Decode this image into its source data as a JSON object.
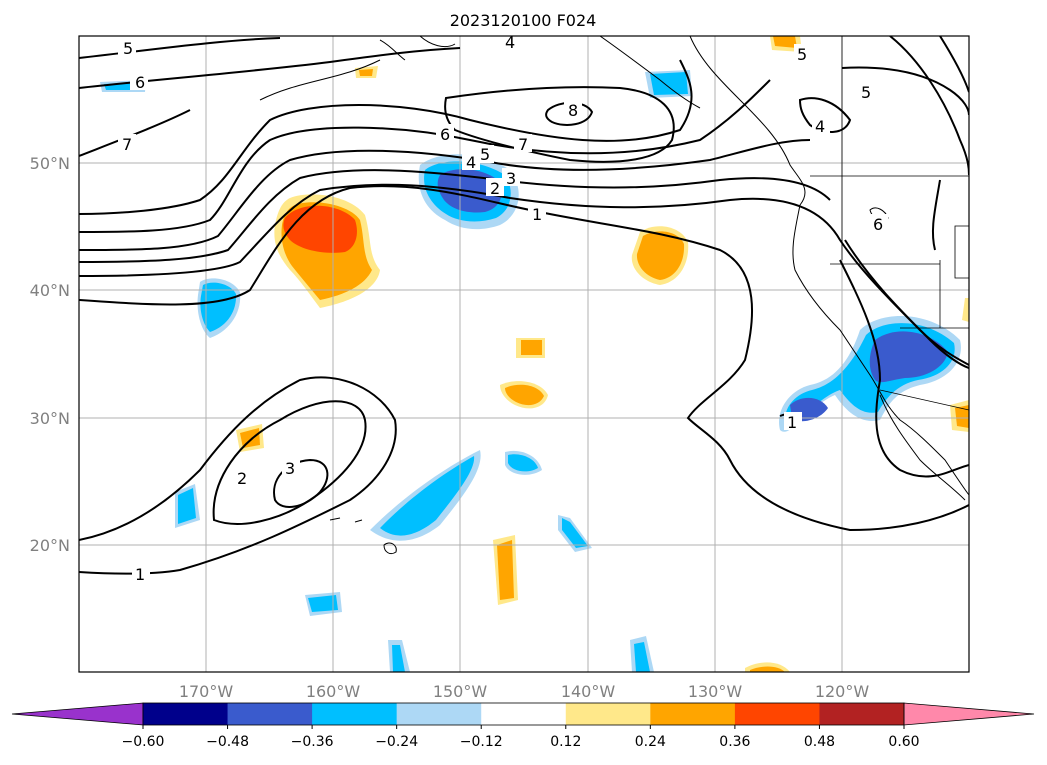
{
  "title": "2023120100 F024",
  "lat_labels": [
    "20°N",
    "30°N",
    "40°N",
    "50°N"
  ],
  "lon_labels": [
    "170°W",
    "160°W",
    "150°W",
    "140°W",
    "130°W",
    "120°W"
  ],
  "colorbar": {
    "ticks": [
      "−0.60",
      "−0.48",
      "−0.36",
      "−0.24",
      "−0.12",
      "0.12",
      "0.24",
      "0.36",
      "0.48",
      "0.60"
    ],
    "colors": [
      "#9932cc",
      "#00008b",
      "#3a5bcd",
      "#00bfff",
      "#add8f5",
      "#ffffff",
      "#ffe88a",
      "#ffa500",
      "#ff4500",
      "#b22222",
      "#ff88aa"
    ]
  },
  "contour_labels": [
    "5",
    "6",
    "7",
    "4",
    "8",
    "6",
    "7",
    "4",
    "5",
    "3",
    "2",
    "1",
    "5",
    "4",
    "5",
    "6",
    "1",
    "2",
    "3",
    "1"
  ]
}
